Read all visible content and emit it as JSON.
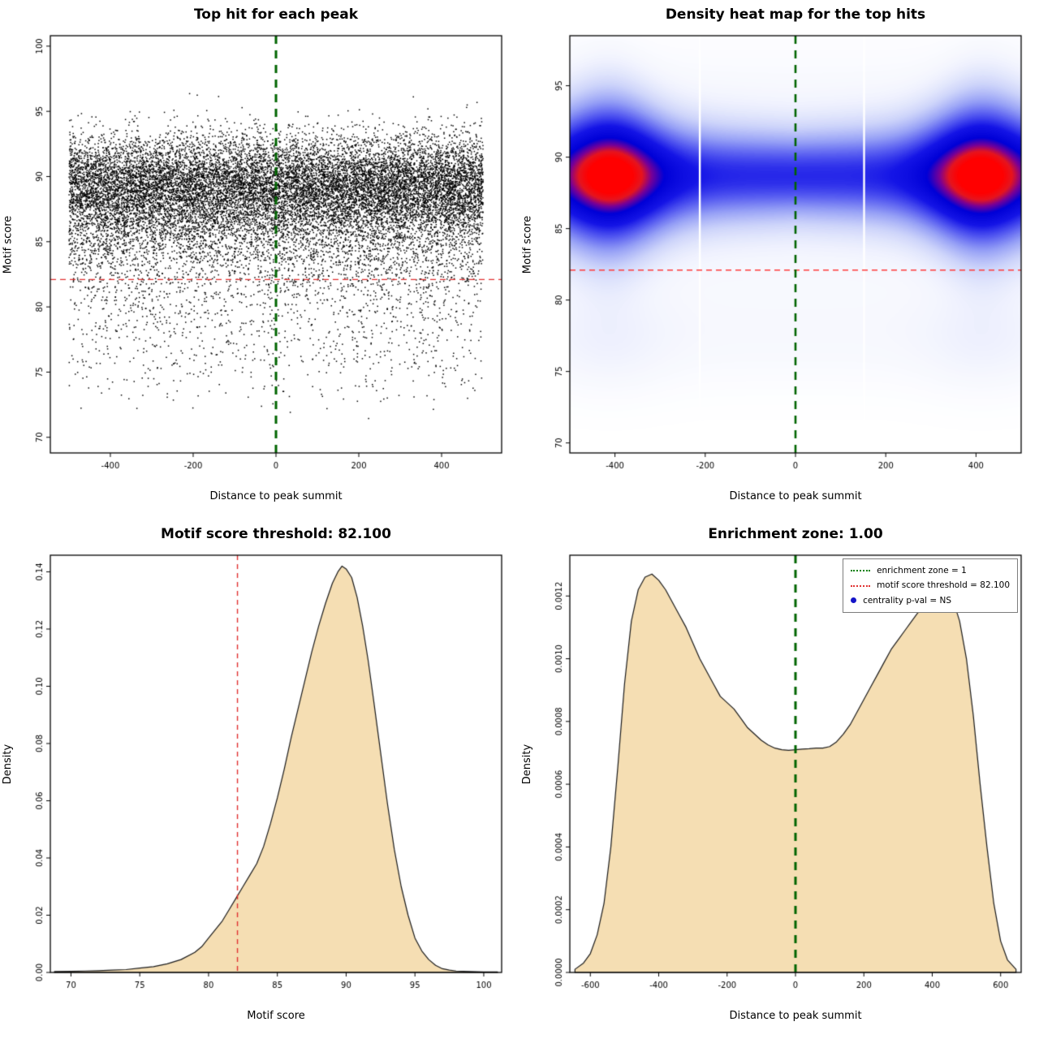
{
  "page": {
    "background": "#ffffff"
  },
  "chart_data": [
    {
      "id": "top-hit-scatter",
      "type": "scatter",
      "title": "Top hit for each peak",
      "xlabel": "Distance to peak summit",
      "ylabel": "Motif score",
      "xlim": [
        -545,
        545
      ],
      "ylim": [
        68.8,
        100.8
      ],
      "xtick_vals": [
        -400,
        -200,
        0,
        200,
        400
      ],
      "xtick_labels": [
        "-400",
        "-200",
        "0",
        "200",
        "400"
      ],
      "ytick_vals": [
        70,
        75,
        80,
        85,
        90,
        95,
        100
      ],
      "ytick_labels": [
        "70",
        "75",
        "80",
        "85",
        "90",
        "95",
        "100"
      ],
      "points": {
        "n": 18000,
        "seed": 1337,
        "x_range": [
          -500,
          500
        ],
        "y_mixture": [
          {
            "mean": 89.3,
            "sd": 1.9,
            "w": 0.75
          },
          {
            "mean": 85.6,
            "sd": 2.1,
            "w": 0.175
          },
          {
            "mean": 80.5,
            "sd": 2.4,
            "w": 0.06
          },
          {
            "mean": 75.2,
            "sd": 1.6,
            "w": 0.015
          }
        ],
        "y_clip": [
          69.4,
          99.9
        ],
        "color": "#000000"
      },
      "hlines": [
        {
          "y": 82.1,
          "color": "#e03131",
          "dash": [
            7,
            5
          ],
          "width": 1.4
        }
      ],
      "vlines": [
        {
          "x": 0,
          "color": "#006400",
          "dash": [
            10,
            8
          ],
          "width": 3
        }
      ]
    },
    {
      "id": "top-hit-heatmap",
      "type": "heatmap",
      "title": "Density heat map for the top hits",
      "xlabel": "Distance to peak summit",
      "ylabel": "Motif score",
      "xlim": [
        -500,
        500
      ],
      "ylim": [
        69.3,
        98.5
      ],
      "xtick_vals": [
        -400,
        -200,
        0,
        200,
        400
      ],
      "xtick_labels": [
        "-400",
        "-200",
        "0",
        "200",
        "400"
      ],
      "ytick_vals": [
        70,
        75,
        80,
        85,
        90,
        95
      ],
      "ytick_labels": [
        "70",
        "75",
        "80",
        "85",
        "90",
        "95"
      ],
      "field": {
        "band_y": 88.7,
        "base_amp": 0.72,
        "hotspot_amp": 0.7,
        "hotspot_x": 410,
        "hotspot_sx": 90,
        "sigma0": 2.0,
        "sigma_side": 0.9,
        "sigma_slope": 0.45,
        "halo_amp": 0.1,
        "halo_sig": 5.5,
        "low_amp": 0.045,
        "low_side": 0.05,
        "low_y": 77.2,
        "low_sig": 2.6,
        "norm": 1.42
      },
      "palette": [
        {
          "t": 0.0,
          "rgb": [
            255,
            255,
            255
          ]
        },
        {
          "t": 0.06,
          "rgb": [
            242,
            244,
            254
          ]
        },
        {
          "t": 0.18,
          "rgb": [
            205,
            212,
            250
          ]
        },
        {
          "t": 0.32,
          "rgb": [
            150,
            160,
            246
          ]
        },
        {
          "t": 0.48,
          "rgb": [
            80,
            85,
            240
          ]
        },
        {
          "t": 0.62,
          "rgb": [
            20,
            20,
            230
          ]
        },
        {
          "t": 0.78,
          "rgb": [
            0,
            0,
            215
          ]
        },
        {
          "t": 0.87,
          "rgb": [
            120,
            0,
            150
          ]
        },
        {
          "t": 0.94,
          "rgb": [
            230,
            20,
            30
          ]
        },
        {
          "t": 1.0,
          "rgb": [
            255,
            0,
            0
          ]
        }
      ],
      "artifact_lines_x": [
        -212,
        152
      ],
      "hlines": [
        {
          "y": 82.1,
          "color": "#ff3b3b",
          "dash": [
            7,
            5
          ],
          "width": 1.4
        }
      ],
      "vlines": [
        {
          "x": 0,
          "color": "#006400",
          "dash": [
            10,
            8
          ],
          "width": 2.6
        }
      ]
    },
    {
      "id": "motif-score-density",
      "type": "density",
      "title": "Motif score threshold: 82.100",
      "xlabel": "Motif score",
      "ylabel": "Density",
      "xlim": [
        68.5,
        101.3
      ],
      "ylim": [
        0,
        0.1458
      ],
      "xtick_vals": [
        70,
        75,
        80,
        85,
        90,
        95,
        100
      ],
      "xtick_labels": [
        "70",
        "75",
        "80",
        "85",
        "90",
        "95",
        "100"
      ],
      "ytick_vals": [
        0,
        0.02,
        0.04,
        0.06,
        0.08,
        0.1,
        0.12,
        0.14
      ],
      "ytick_labels": [
        "0.00",
        "0.02",
        "0.04",
        "0.06",
        "0.08",
        "0.10",
        "0.12",
        "0.14"
      ],
      "fill_color": "#f5deb3",
      "stroke_color": "#1a1a1a",
      "curve_x": [
        68.8,
        70,
        71,
        72,
        73,
        74,
        75,
        76,
        77,
        78,
        79,
        79.5,
        80,
        80.5,
        81,
        81.5,
        82,
        82.5,
        83,
        83.5,
        84,
        84.5,
        85,
        85.5,
        86,
        86.5,
        87,
        87.5,
        88,
        88.5,
        89,
        89.4,
        89.7,
        90,
        90.4,
        90.8,
        91.2,
        91.6,
        92,
        92.5,
        93,
        93.5,
        94,
        94.5,
        95,
        95.5,
        96,
        96.5,
        97,
        97.5,
        98,
        99,
        100,
        101
      ],
      "curve_y": [
        0.0003,
        0.0004,
        0.0005,
        0.0006,
        0.0008,
        0.001,
        0.0015,
        0.002,
        0.003,
        0.0045,
        0.007,
        0.009,
        0.012,
        0.015,
        0.018,
        0.022,
        0.026,
        0.03,
        0.034,
        0.038,
        0.044,
        0.052,
        0.061,
        0.071,
        0.082,
        0.092,
        0.102,
        0.112,
        0.121,
        0.129,
        0.136,
        0.14,
        0.142,
        0.141,
        0.138,
        0.131,
        0.121,
        0.109,
        0.095,
        0.077,
        0.059,
        0.043,
        0.03,
        0.02,
        0.012,
        0.0075,
        0.0045,
        0.0025,
        0.0013,
        0.0008,
        0.0005,
        0.0003,
        0.0002,
        0.0002
      ],
      "hlines": [],
      "vlines": [
        {
          "x": 82.1,
          "color": "#e03131",
          "dash": [
            6,
            5
          ],
          "width": 1.4
        }
      ]
    },
    {
      "id": "enrichment-zone-density",
      "type": "density",
      "title": "Enrichment zone: 1.00",
      "xlabel": "Distance to peak summit",
      "ylabel": "Density",
      "xlim": [
        -660,
        660
      ],
      "ylim": [
        0,
        0.00133
      ],
      "xtick_vals": [
        -600,
        -400,
        -200,
        0,
        200,
        400,
        600
      ],
      "xtick_labels": [
        "-600",
        "-400",
        "-200",
        "0",
        "200",
        "400",
        "600"
      ],
      "ytick_vals": [
        0,
        0.0002,
        0.0004,
        0.0006,
        0.0008,
        0.001,
        0.0012
      ],
      "ytick_labels": [
        "0.0000",
        "0.0002",
        "0.0004",
        "0.0006",
        "0.0008",
        "0.0010",
        "0.0012"
      ],
      "fill_color": "#f5deb3",
      "stroke_color": "#1a1a1a",
      "curve_x": [
        -645,
        -620,
        -600,
        -580,
        -560,
        -540,
        -520,
        -500,
        -480,
        -460,
        -440,
        -420,
        -400,
        -380,
        -360,
        -340,
        -320,
        -300,
        -280,
        -260,
        -240,
        -220,
        -200,
        -180,
        -160,
        -140,
        -120,
        -100,
        -80,
        -60,
        -40,
        -20,
        0,
        20,
        40,
        60,
        80,
        100,
        120,
        140,
        160,
        180,
        200,
        220,
        240,
        260,
        280,
        300,
        320,
        340,
        360,
        380,
        400,
        420,
        440,
        460,
        480,
        500,
        520,
        540,
        560,
        580,
        600,
        620,
        645
      ],
      "curve_y": [
        1e-05,
        3e-05,
        6e-05,
        0.00012,
        0.00022,
        0.0004,
        0.00065,
        0.00092,
        0.00112,
        0.00122,
        0.00126,
        0.00127,
        0.00125,
        0.00122,
        0.00118,
        0.00114,
        0.0011,
        0.00105,
        0.001,
        0.00096,
        0.00092,
        0.00088,
        0.00086,
        0.00084,
        0.00081,
        0.00078,
        0.00076,
        0.00074,
        0.000725,
        0.000715,
        0.00071,
        0.000708,
        0.00071,
        0.000712,
        0.000713,
        0.000715,
        0.000715,
        0.00072,
        0.000735,
        0.00076,
        0.00079,
        0.00083,
        0.00087,
        0.00091,
        0.00095,
        0.00099,
        0.00103,
        0.00106,
        0.00109,
        0.00112,
        0.00115,
        0.00118,
        0.0012,
        0.00122,
        0.00122,
        0.00119,
        0.00112,
        0.001,
        0.00082,
        0.0006,
        0.0004,
        0.00022,
        0.0001,
        4e-05,
        1e-05
      ],
      "hlines": [],
      "vlines": [
        {
          "x": 0,
          "color": "#006400",
          "dash": [
            10,
            8
          ],
          "width": 3
        }
      ],
      "legend": [
        {
          "type": "line",
          "color": "#008000",
          "label": "enrichment zone = 1"
        },
        {
          "type": "line",
          "color": "#e03131",
          "label": "motif score threshold = 82.100"
        },
        {
          "type": "dot",
          "color": "#1414c8",
          "label": "centrality p-val = NS"
        }
      ]
    }
  ]
}
